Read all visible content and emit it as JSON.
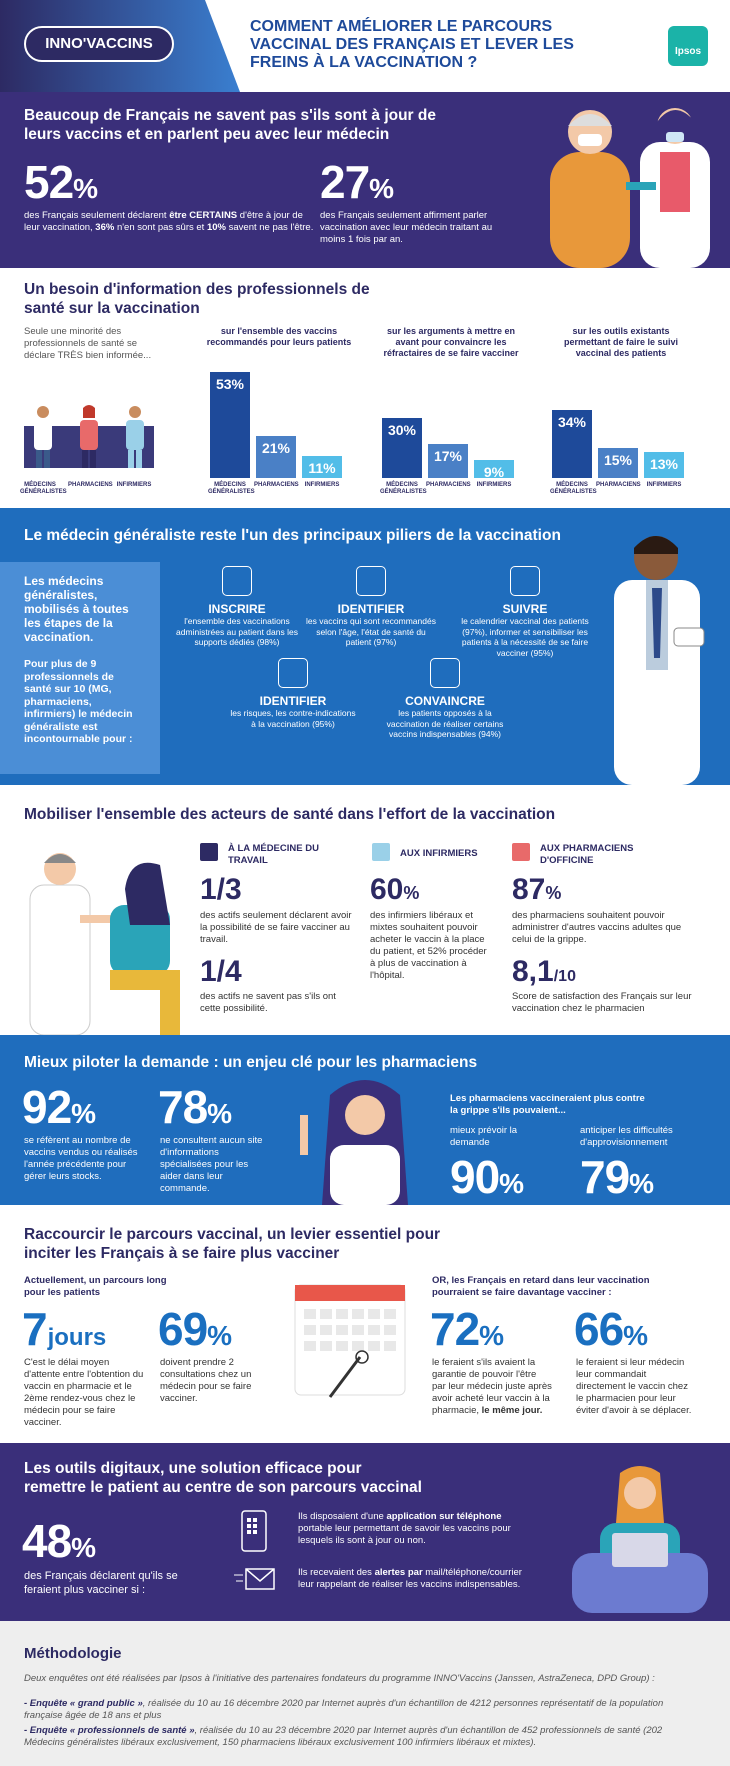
{
  "header": {
    "logo": "INNO'VACCINS",
    "title": "COMMENT AMÉLIORER LE PARCOURS VACCINAL DES FRANÇAIS ET LEVER LES FREINS À LA VACCINATION ?",
    "brand": "Ipsos"
  },
  "s1": {
    "title": "Beaucoup de Français ne savent pas s'ils sont à jour de leurs vaccins et en parlent peu avec leur médecin",
    "stat1": {
      "value": "52",
      "unit": "%",
      "pre": "des Français seulement déclarent ",
      "bold1": "être CERTAINS",
      "mid": " d'être à jour de leur vaccination, ",
      "bold2": "36%",
      "mid2": " n'en sont pas sûrs et ",
      "bold3": "10%",
      "post": " savent ne pas l'être."
    },
    "stat2": {
      "value": "27",
      "unit": "%",
      "text": "des Français seulement affirment parler vaccination avec leur médecin traitant au moins 1 fois par an."
    }
  },
  "s2": {
    "title": "Un besoin d'information des professionnels de santé sur la vaccination",
    "intro": "Seule une minorité des professionnels de santé se déclare TRÈS bien informée...",
    "roles": [
      "MÉDECINS GÉNÉRALISTES",
      "PHARMACIENS",
      "INFIRMIERS"
    ],
    "groups": [
      {
        "caption": "sur l'ensemble des vaccins recommandés pour leurs patients",
        "values": [
          53,
          21,
          11
        ],
        "labels": [
          "53%",
          "21%",
          "11%"
        ]
      },
      {
        "caption": "sur les arguments à mettre en avant pour convaincre les réfractaires de se faire vacciner",
        "values": [
          30,
          17,
          9
        ],
        "labels": [
          "30%",
          "17%",
          "9%"
        ]
      },
      {
        "caption": "sur les outils existants permettant de faire le suivi vaccinal des patients",
        "values": [
          34,
          15,
          13
        ],
        "labels": [
          "34%",
          "15%",
          "13%"
        ]
      }
    ],
    "colors": [
      "#1e4a9a",
      "#4a80c6",
      "#52bde8"
    ]
  },
  "s3": {
    "title": "Le médecin généraliste reste l'un des principaux piliers de la vaccination",
    "side1": "Les médecins généralistes, mobilisés à toutes les étapes de la vaccination.",
    "side2": "Pour plus de 9 professionnels de santé sur 10 (MG, pharmaciens, infirmiers) le médecin généraliste est incontournable pour :",
    "actions": [
      {
        "title": "INSCRIRE",
        "desc": "l'ensemble des vaccinations administrées au patient dans les supports dédiés (98%)",
        "icon": "clipboard-icon"
      },
      {
        "title": "IDENTIFIER",
        "desc": "les vaccins qui sont recommandés selon l'âge, l'état de santé du patient (97%)",
        "icon": "people-icon"
      },
      {
        "title": "SUIVRE",
        "desc": "le calendrier vaccinal des patients (97%), informer et sensibiliser les patients à la nécessité de se faire vacciner (95%)",
        "icon": "calendar-icon"
      },
      {
        "title": "IDENTIFIER",
        "desc": "les risques, les contre-indications à la vaccination (95%)",
        "icon": "virus-icon"
      },
      {
        "title": "CONVAINCRE",
        "desc": "les patients opposés à la vaccination de réaliser certains vaccins indispensables (94%)",
        "icon": "speech-icon"
      }
    ]
  },
  "s4": {
    "title": "Mobiliser l'ensemble des acteurs de santé dans l'effort de la vaccination",
    "col1": {
      "head": "À LA MÉDECINE DU TRAVAIL",
      "v1": "1/3",
      "t1": "des actifs seulement déclarent avoir la possibilité de se faire vacciner au travail.",
      "v2": "1/4",
      "t2": "des actifs ne savent pas s'ils ont cette possibilité."
    },
    "col2": {
      "head": "AUX INFIRMIERS",
      "v1": "60",
      "u1": "%",
      "t1": "des infirmiers libéraux et mixtes souhaitent pouvoir acheter le vaccin à la place du patient, et 52% procéder à plus de vaccination à l'hôpital."
    },
    "col3": {
      "head": "AUX PHARMACIENS D'OFFICINE",
      "v1": "87",
      "u1": "%",
      "t1": "des pharmaciens souhaitent pouvoir administrer d'autres vaccins adultes que celui de la grippe.",
      "v2": "8,1",
      "u2": "/10",
      "t2": "Score de satisfaction des Français sur leur vaccination chez le pharmacien"
    }
  },
  "s5": {
    "title": "Mieux piloter la demande : un enjeu clé pour les pharmaciens",
    "a": {
      "value": "92",
      "unit": "%",
      "text": "se réfèrent au nombre de vaccins vendus ou réalisés l'année précédente pour gérer leurs stocks."
    },
    "b": {
      "value": "78",
      "unit": "%",
      "text": "ne consultent aucun site d'informations spécialisées pour les aider dans leur commande."
    },
    "right_head": "Les pharmaciens vaccineraient plus contre la grippe s'ils pouvaient...",
    "c": {
      "label": "mieux prévoir la demande",
      "value": "90",
      "unit": "%"
    },
    "d": {
      "label": "anticiper les difficultés d'approvisionnement",
      "value": "79",
      "unit": "%"
    }
  },
  "s6": {
    "title": "Raccourcir le parcours vaccinal, un levier essentiel pour inciter les Français à se faire plus vacciner",
    "left_head": "Actuellement, un parcours long pour les patients",
    "a": {
      "value": "7",
      "unit": "jours",
      "text": "C'est le délai moyen d'attente entre l'obtention du vaccin en pharmacie et le 2ème rendez-vous chez le médecin pour se faire vacciner."
    },
    "b": {
      "value": "69",
      "unit": "%",
      "text": "doivent prendre 2 consultations chez un médecin pour se faire vacciner."
    },
    "right_head": "OR, les Français en retard dans leur vaccination pourraient se faire davantage vacciner :",
    "c": {
      "value": "72",
      "unit": "%",
      "text": "le feraient s'ils avaient la garantie de pouvoir l'être par leur médecin juste après avoir acheté leur vaccin à la pharmacie, ",
      "bold": "le même jour."
    },
    "d": {
      "value": "66",
      "unit": "%",
      "text": "le feraient si leur médecin leur commandait directement le vaccin chez le pharmacien pour leur éviter d'avoir à se déplacer."
    }
  },
  "s7": {
    "title": "Les outils digitaux, une solution efficace pour remettre le patient au centre de son parcours vaccinal",
    "value": "48",
    "unit": "%",
    "text": "des Français déclarent qu'ils se feraient plus vacciner si :",
    "item1_pre": "Ils disposaient d'une ",
    "item1_bold": "application sur téléphone",
    "item1_post": " portable leur permettant de savoir les vaccins pour lesquels ils sont à jour ou non.",
    "item2_pre": "Ils recevaient des ",
    "item2_bold": "alertes par",
    "item2_post": " mail/téléphone/courrier leur rappelant de réaliser les vaccins indispensables."
  },
  "method": {
    "title": "Méthodologie",
    "intro": "Deux enquêtes ont été réalisées par Ipsos à l'initiative des partenaires fondateurs du programme INNO'Vaccins (Janssen, AstraZeneca, DPD Group) :",
    "e1_bold": "- Enquête « grand public »",
    "e1": ", réalisée du 10 au 16 décembre 2020 par Internet auprès d'un échantillon de 4212 personnes représentatif de la population française âgée de 18 ans et plus",
    "e2_bold": "- Enquête « professionnels de santé »",
    "e2": ", réalisée du 10 au 23 décembre 2020 par Internet auprès d'un échantillon de 452 professionnels de santé (202 Médecins généralistes libéraux exclusivement, 150 pharmaciens libéraux exclusivement 100 infirmiers libéraux et mixtes)."
  }
}
